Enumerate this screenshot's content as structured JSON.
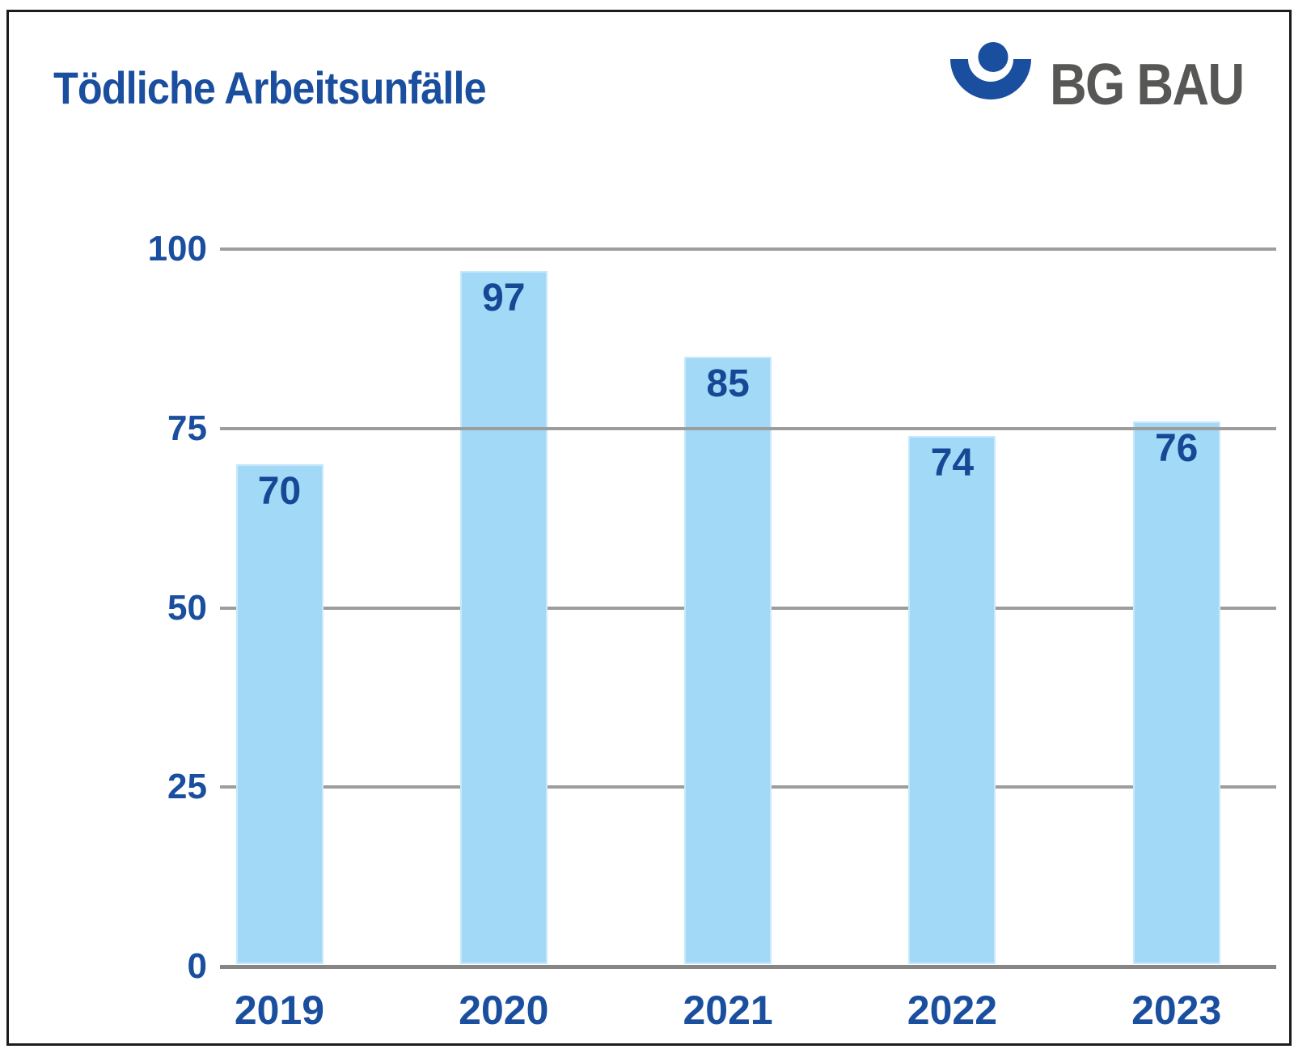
{
  "title": "Tödliche Arbeitsunfälle",
  "logo": {
    "text": "BG BAU",
    "mark_icon": "bg-bau-person-umbrella-mark",
    "mark_color": "#1A4E9E",
    "text_color": "#575756"
  },
  "colors": {
    "accent_blue": "#1A4E9E",
    "bar_fill": "#A2D9F7",
    "gridline": "#9D9D9C",
    "axis_line": "#868686"
  },
  "chart_data": {
    "type": "bar",
    "title": "Tödliche Arbeitsunfälle",
    "categories": [
      "2019",
      "2020",
      "2021",
      "2022",
      "2023"
    ],
    "values": [
      70,
      97,
      85,
      74,
      76
    ],
    "yticks": [
      0,
      25,
      50,
      75,
      100
    ],
    "ylim": [
      0,
      100
    ],
    "xlabel": "",
    "ylabel": "",
    "grid": true,
    "legend": false,
    "value_labels_position": "inside-top",
    "bar_color": "#A2D9F7",
    "label_color": "#164896"
  }
}
